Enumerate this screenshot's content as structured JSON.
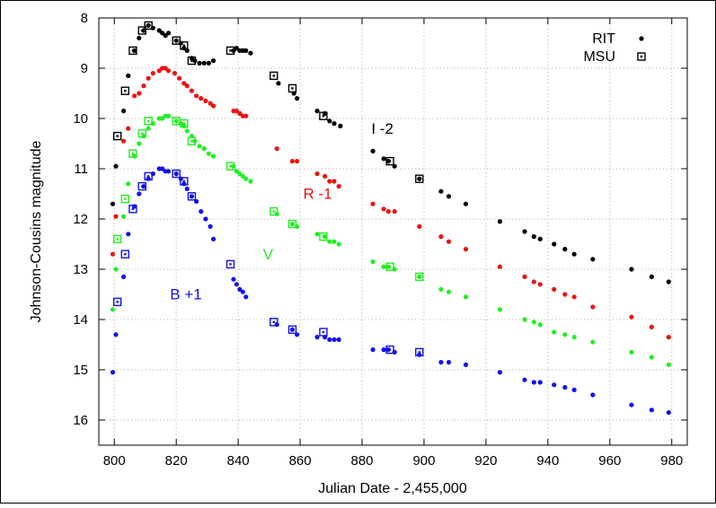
{
  "chart_data": {
    "type": "scatter",
    "title": "",
    "xlabel": "Julian Date - 2,455,000",
    "ylabel": "Johnson-Cousins magnitude",
    "xlim": [
      795,
      985
    ],
    "ylim": [
      16.5,
      8
    ],
    "y_inverted": true,
    "grid": true,
    "x_ticks": [
      "800",
      "820",
      "840",
      "860",
      "880",
      "900",
      "920",
      "940",
      "960",
      "980"
    ],
    "y_ticks": [
      "8",
      "9",
      "10",
      "11",
      "12",
      "13",
      "14",
      "15",
      "16"
    ],
    "legend": {
      "placement": "top-right",
      "entries": [
        {
          "label": "RIT",
          "marker": "dot"
        },
        {
          "label": "MSU",
          "marker": "square"
        }
      ]
    },
    "annotations": [
      {
        "text": "I -2",
        "series": "I",
        "x": 883,
        "y": 10.3
      },
      {
        "text": "R -1",
        "series": "R",
        "x": 861,
        "y": 11.6
      },
      {
        "text": "V",
        "series": "V",
        "x": 848,
        "y": 12.8
      },
      {
        "text": "B +1",
        "series": "B",
        "x": 818,
        "y": 13.6
      }
    ],
    "series": [
      {
        "key": "I",
        "color": "#000000",
        "rit": [
          [
            799.5,
            11.7
          ],
          [
            800.5,
            10.95
          ],
          [
            803,
            9.85
          ],
          [
            804.5,
            9.15
          ],
          [
            806.5,
            8.65
          ],
          [
            808,
            8.4
          ],
          [
            809.5,
            8.25
          ],
          [
            811,
            8.15
          ],
          [
            812.5,
            8.2
          ],
          [
            814.5,
            8.25
          ],
          [
            815.5,
            8.3
          ],
          [
            816.5,
            8.35
          ],
          [
            817.5,
            8.3
          ],
          [
            820,
            8.45
          ],
          [
            821.5,
            8.5
          ],
          [
            822.5,
            8.6
          ],
          [
            823.5,
            8.65
          ],
          [
            825,
            8.8
          ],
          [
            826,
            8.85
          ],
          [
            827.5,
            8.9
          ],
          [
            829,
            8.9
          ],
          [
            830.5,
            8.9
          ],
          [
            832,
            8.85
          ],
          [
            838.5,
            8.65
          ],
          [
            839.5,
            8.6
          ],
          [
            840.5,
            8.65
          ],
          [
            841.5,
            8.65
          ],
          [
            842.5,
            8.65
          ],
          [
            844,
            8.7
          ],
          [
            853,
            9.3
          ],
          [
            858,
            9.5
          ],
          [
            859,
            9.6
          ],
          [
            865.5,
            9.85
          ],
          [
            868,
            9.9
          ],
          [
            869.5,
            10.05
          ],
          [
            871,
            10.1
          ],
          [
            873,
            10.15
          ],
          [
            883.5,
            10.65
          ],
          [
            887,
            10.8
          ],
          [
            888.5,
            10.85
          ],
          [
            890.5,
            10.95
          ],
          [
            898.5,
            11.2
          ],
          [
            905.5,
            11.45
          ],
          [
            908,
            11.55
          ],
          [
            913.5,
            11.7
          ],
          [
            924.5,
            12.05
          ],
          [
            932.5,
            12.25
          ],
          [
            935.5,
            12.35
          ],
          [
            937.5,
            12.4
          ],
          [
            942,
            12.5
          ],
          [
            945.5,
            12.6
          ],
          [
            948.5,
            12.7
          ],
          [
            954.5,
            12.8
          ],
          [
            967,
            13.0
          ],
          [
            973.5,
            13.15
          ],
          [
            979,
            13.25
          ]
        ],
        "msu": [
          [
            801,
            10.35
          ],
          [
            803.5,
            9.45
          ],
          [
            806,
            8.65
          ],
          [
            809,
            8.25
          ],
          [
            811,
            8.15
          ],
          [
            820,
            8.45
          ],
          [
            822.5,
            8.55
          ],
          [
            825,
            8.85
          ],
          [
            837.5,
            8.65
          ],
          [
            851.5,
            9.15
          ],
          [
            857.5,
            9.4
          ],
          [
            867.5,
            9.95
          ],
          [
            889,
            10.85
          ],
          [
            898.5,
            11.2
          ]
        ]
      },
      {
        "key": "R",
        "color": "#ee1111",
        "rit": [
          [
            799.5,
            12.7
          ],
          [
            800.5,
            11.95
          ],
          [
            803,
            10.45
          ],
          [
            804.5,
            10.2
          ],
          [
            806.5,
            9.55
          ],
          [
            808,
            9.5
          ],
          [
            809.5,
            9.35
          ],
          [
            811,
            9.2
          ],
          [
            812.5,
            9.1
          ],
          [
            814.5,
            9.05
          ],
          [
            815.5,
            9.0
          ],
          [
            816.5,
            9.0
          ],
          [
            817.5,
            9.05
          ],
          [
            819.5,
            9.1
          ],
          [
            821,
            9.2
          ],
          [
            822.5,
            9.3
          ],
          [
            823.5,
            9.35
          ],
          [
            825,
            9.45
          ],
          [
            826.5,
            9.55
          ],
          [
            828,
            9.6
          ],
          [
            829.5,
            9.65
          ],
          [
            831,
            9.7
          ],
          [
            832,
            9.75
          ],
          [
            838.5,
            9.85
          ],
          [
            839.5,
            9.85
          ],
          [
            840.5,
            9.9
          ],
          [
            841.5,
            9.95
          ],
          [
            842.5,
            9.95
          ],
          [
            852.5,
            10.6
          ],
          [
            857.5,
            10.85
          ],
          [
            859,
            10.85
          ],
          [
            865.5,
            11.1
          ],
          [
            868,
            11.15
          ],
          [
            869.5,
            11.25
          ],
          [
            871,
            11.25
          ],
          [
            872.5,
            11.35
          ],
          [
            883.5,
            11.7
          ],
          [
            887,
            11.8
          ],
          [
            888.5,
            11.85
          ],
          [
            890.5,
            11.85
          ],
          [
            898.5,
            12.15
          ],
          [
            905.5,
            12.35
          ],
          [
            908,
            12.45
          ],
          [
            913.5,
            12.6
          ],
          [
            924.5,
            12.95
          ],
          [
            932.5,
            13.15
          ],
          [
            935.5,
            13.25
          ],
          [
            937.5,
            13.3
          ],
          [
            942,
            13.4
          ],
          [
            945.5,
            13.5
          ],
          [
            948.5,
            13.55
          ],
          [
            954.5,
            13.75
          ],
          [
            967,
            13.95
          ],
          [
            973.5,
            14.15
          ],
          [
            979,
            14.35
          ]
        ],
        "msu": []
      },
      {
        "key": "V",
        "color": "#22ee22",
        "rit": [
          [
            799.5,
            13.8
          ],
          [
            800.5,
            13.0
          ],
          [
            803,
            11.95
          ],
          [
            804.5,
            11.3
          ],
          [
            806.5,
            10.75
          ],
          [
            808,
            10.5
          ],
          [
            809.5,
            10.35
          ],
          [
            811,
            10.2
          ],
          [
            812.5,
            10.1
          ],
          [
            814.5,
            10.0
          ],
          [
            815.5,
            10.0
          ],
          [
            816.5,
            9.95
          ],
          [
            817.5,
            9.95
          ],
          [
            820,
            10.05
          ],
          [
            821.5,
            10.1
          ],
          [
            822.5,
            10.15
          ],
          [
            823.5,
            10.25
          ],
          [
            825,
            10.35
          ],
          [
            826,
            10.45
          ],
          [
            827.5,
            10.55
          ],
          [
            829,
            10.6
          ],
          [
            830.5,
            10.7
          ],
          [
            832,
            10.75
          ],
          [
            838.5,
            10.95
          ],
          [
            839.5,
            11.05
          ],
          [
            840.5,
            11.1
          ],
          [
            841.5,
            11.15
          ],
          [
            842.5,
            11.2
          ],
          [
            844,
            11.25
          ],
          [
            852.5,
            11.9
          ],
          [
            857.5,
            12.1
          ],
          [
            859,
            12.15
          ],
          [
            865.5,
            12.3
          ],
          [
            868,
            12.35
          ],
          [
            869.5,
            12.45
          ],
          [
            871,
            12.45
          ],
          [
            872.5,
            12.5
          ],
          [
            883.5,
            12.85
          ],
          [
            887,
            12.95
          ],
          [
            888.5,
            12.95
          ],
          [
            890.5,
            13.0
          ],
          [
            898.5,
            13.15
          ],
          [
            905.5,
            13.4
          ],
          [
            908,
            13.45
          ],
          [
            913.5,
            13.55
          ],
          [
            924.5,
            13.8
          ],
          [
            932.5,
            14.0
          ],
          [
            935.5,
            14.05
          ],
          [
            937.5,
            14.1
          ],
          [
            942,
            14.25
          ],
          [
            945.5,
            14.3
          ],
          [
            948.5,
            14.35
          ],
          [
            954.5,
            14.45
          ],
          [
            967,
            14.65
          ],
          [
            973.5,
            14.75
          ],
          [
            979,
            14.9
          ]
        ],
        "msu": [
          [
            801,
            12.4
          ],
          [
            803.5,
            11.6
          ],
          [
            806,
            10.7
          ],
          [
            809,
            10.3
          ],
          [
            811,
            10.05
          ],
          [
            820,
            10.05
          ],
          [
            822.5,
            10.1
          ],
          [
            825,
            10.45
          ],
          [
            837.5,
            10.95
          ],
          [
            851.5,
            11.85
          ],
          [
            857.5,
            12.1
          ],
          [
            867.5,
            12.35
          ],
          [
            889,
            12.95
          ],
          [
            898.5,
            13.15
          ]
        ]
      },
      {
        "key": "B",
        "color": "#1111ee",
        "rit": [
          [
            799.5,
            15.05
          ],
          [
            800.5,
            14.3
          ],
          [
            803,
            13.15
          ],
          [
            804.5,
            12.3
          ],
          [
            806.5,
            11.75
          ],
          [
            808,
            11.5
          ],
          [
            809.5,
            11.35
          ],
          [
            811,
            11.2
          ],
          [
            812.5,
            11.1
          ],
          [
            814.5,
            11.0
          ],
          [
            815.5,
            11.0
          ],
          [
            816.5,
            11.05
          ],
          [
            817.5,
            11.05
          ],
          [
            820,
            11.1
          ],
          [
            821.5,
            11.2
          ],
          [
            822.5,
            11.3
          ],
          [
            823.5,
            11.4
          ],
          [
            825,
            11.55
          ],
          [
            826.5,
            11.65
          ],
          [
            828,
            11.85
          ],
          [
            829.5,
            12.0
          ],
          [
            831,
            12.15
          ],
          [
            832,
            12.4
          ],
          [
            838.5,
            13.2
          ],
          [
            839.5,
            13.3
          ],
          [
            840.5,
            13.4
          ],
          [
            841.5,
            13.45
          ],
          [
            842.5,
            13.55
          ],
          [
            852.5,
            14.1
          ],
          [
            857.5,
            14.2
          ],
          [
            859,
            14.3
          ],
          [
            865.5,
            14.35
          ],
          [
            868,
            14.35
          ],
          [
            869.5,
            14.4
          ],
          [
            871,
            14.4
          ],
          [
            872.5,
            14.4
          ],
          [
            883.5,
            14.6
          ],
          [
            887,
            14.6
          ],
          [
            888.5,
            14.6
          ],
          [
            890.5,
            14.65
          ],
          [
            898.5,
            14.7
          ],
          [
            905.5,
            14.85
          ],
          [
            908,
            14.85
          ],
          [
            913.5,
            14.9
          ],
          [
            924.5,
            15.05
          ],
          [
            932.5,
            15.2
          ],
          [
            935.5,
            15.25
          ],
          [
            937.5,
            15.25
          ],
          [
            942,
            15.3
          ],
          [
            945.5,
            15.35
          ],
          [
            948.5,
            15.4
          ],
          [
            954.5,
            15.5
          ],
          [
            967,
            15.7
          ],
          [
            973.5,
            15.8
          ],
          [
            979,
            15.85
          ]
        ],
        "msu": [
          [
            801,
            13.65
          ],
          [
            803.5,
            12.7
          ],
          [
            806,
            11.8
          ],
          [
            809,
            11.35
          ],
          [
            811,
            11.15
          ],
          [
            820,
            11.1
          ],
          [
            822.5,
            11.25
          ],
          [
            825,
            11.55
          ],
          [
            837.5,
            12.9
          ],
          [
            851.5,
            14.05
          ],
          [
            857.5,
            14.2
          ],
          [
            867.5,
            14.25
          ],
          [
            889,
            14.6
          ],
          [
            898.5,
            14.65
          ]
        ]
      }
    ]
  }
}
